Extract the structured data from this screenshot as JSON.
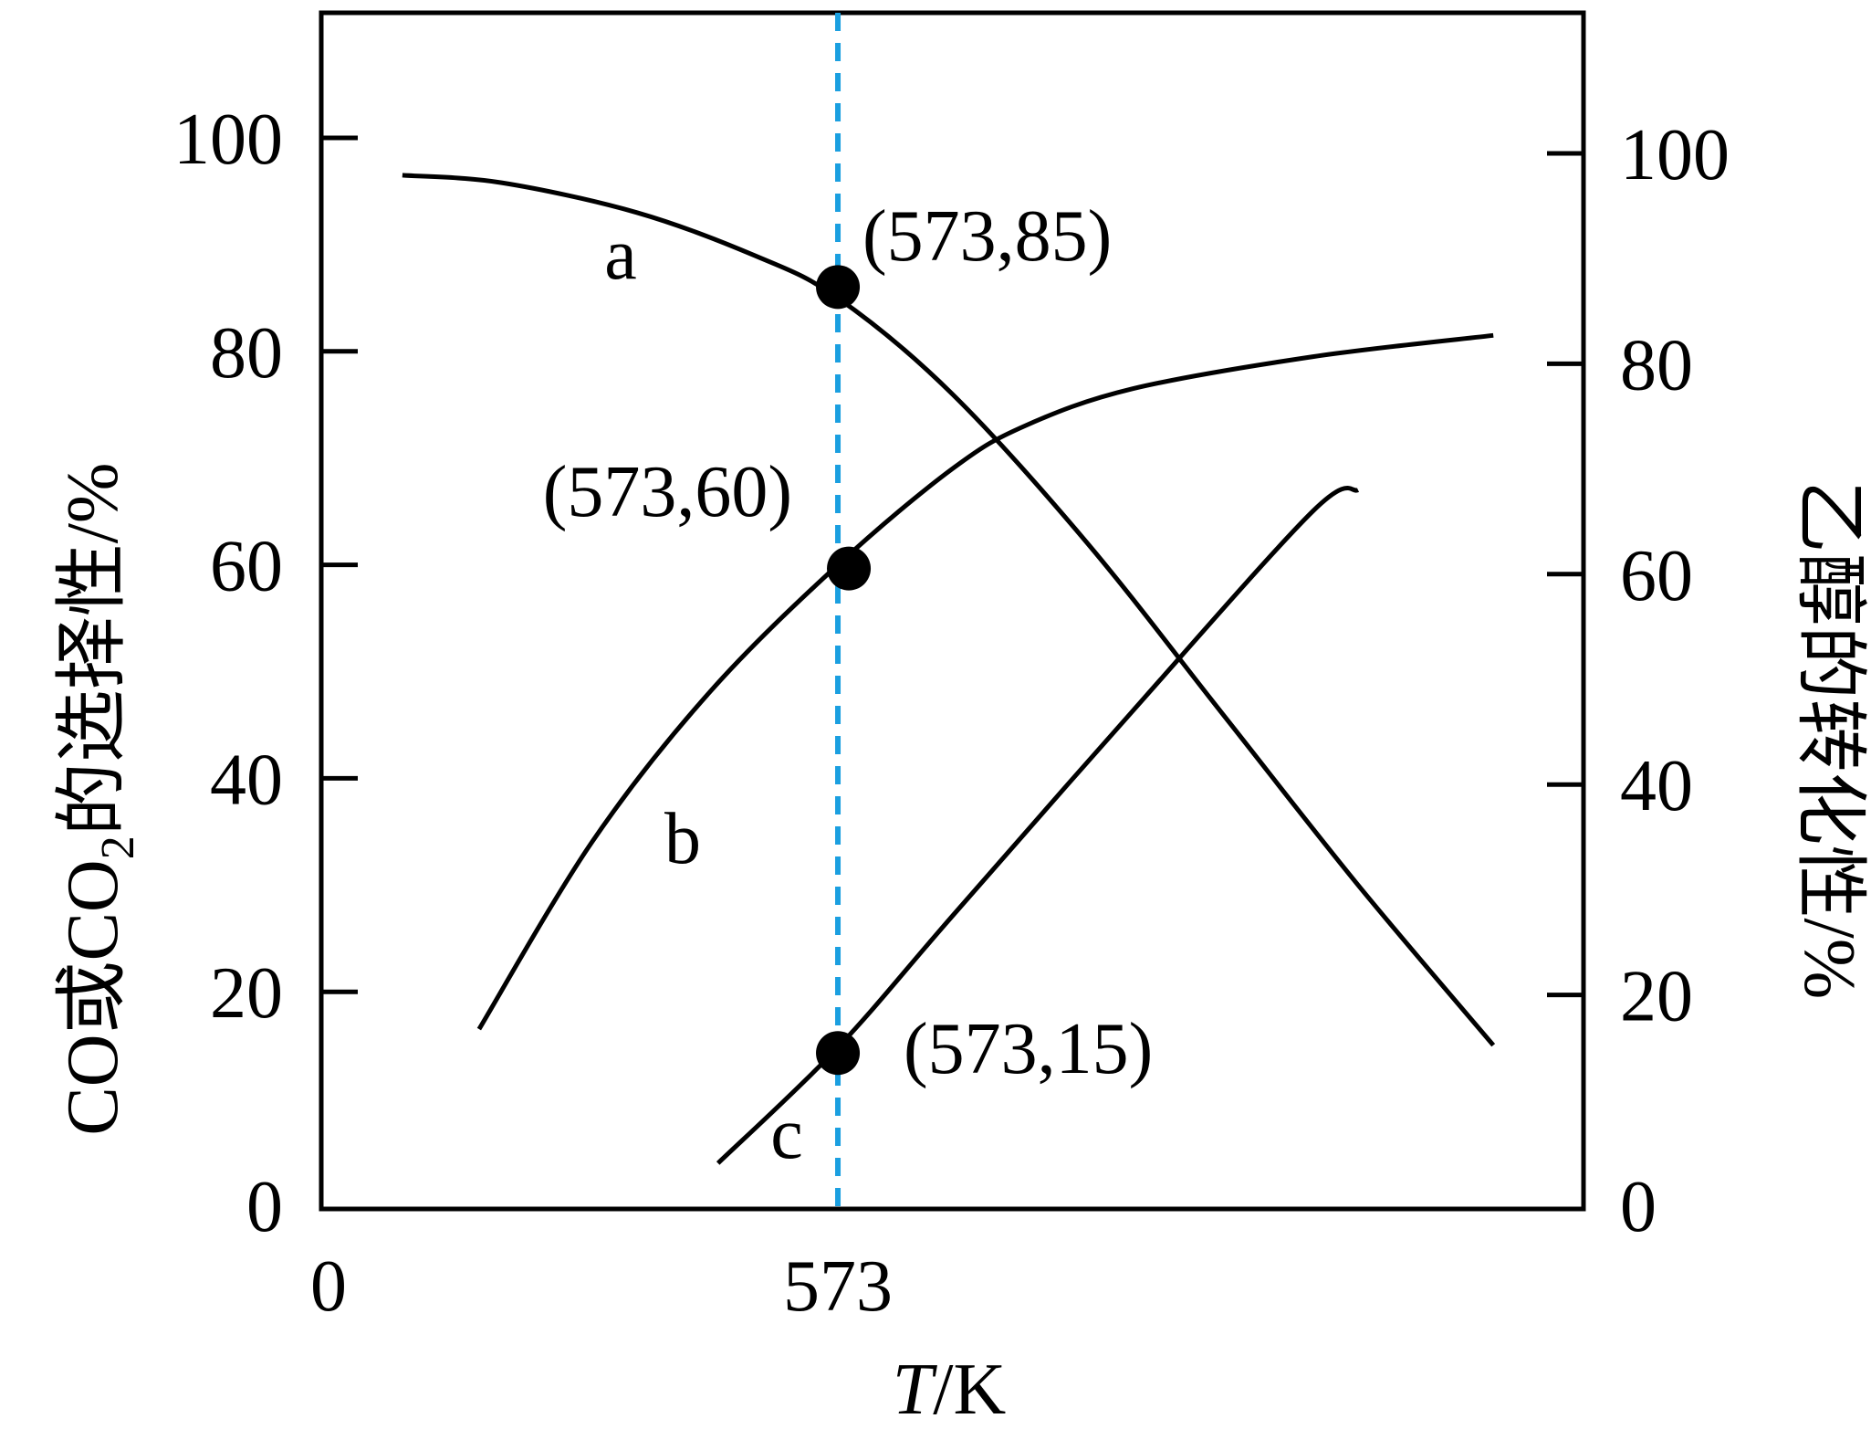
{
  "chart_data": {
    "type": "line",
    "x_axis": {
      "label_var": "T",
      "label_unit": "/K",
      "ticks": [
        {
          "value": 0,
          "label": "0"
        },
        {
          "value": 573,
          "label": "573"
        }
      ],
      "range": [
        0,
        1400
      ]
    },
    "y_left": {
      "label_main": "CO或CO",
      "label_sub": "2",
      "label_tail": "的选择性/%",
      "ticks": [
        0,
        20,
        40,
        60,
        80,
        100
      ],
      "range": [
        0,
        100
      ]
    },
    "y_right": {
      "label": "乙醇的转化性/%",
      "ticks": [
        0,
        20,
        40,
        60,
        80,
        100
      ],
      "range": [
        0,
        100
      ]
    },
    "reference_line": {
      "x": 573,
      "style": "dashed",
      "color": "#1a9fe0"
    },
    "series": [
      {
        "name": "a",
        "axis": "left",
        "x": [
          90,
          200,
          350,
          480,
          573,
          700,
          850,
          1000,
          1150,
          1300
        ],
        "y": [
          96.5,
          95.8,
          93,
          89,
          85,
          76,
          62,
          46,
          30,
          15
        ]
      },
      {
        "name": "b",
        "axis": "left",
        "x": [
          175,
          300,
          430,
          573,
          700,
          780,
          900,
          1100,
          1300
        ],
        "y": [
          16.5,
          34,
          48,
          60,
          69,
          73,
          76.5,
          79.5,
          81.5
        ]
      },
      {
        "name": "c",
        "axis": "right",
        "x": [
          440,
          573,
          700,
          900,
          1100,
          1150
        ],
        "y": [
          4,
          15,
          27.5,
          47,
          66,
          68
        ]
      }
    ],
    "points": [
      {
        "x": 573,
        "y": 85,
        "label": "(573,85)"
      },
      {
        "x": 573,
        "y": 60,
        "label": "(573,60)"
      },
      {
        "x": 573,
        "y": 15,
        "label": "(573,15)"
      }
    ],
    "line_color": "#000000",
    "grid": false
  }
}
